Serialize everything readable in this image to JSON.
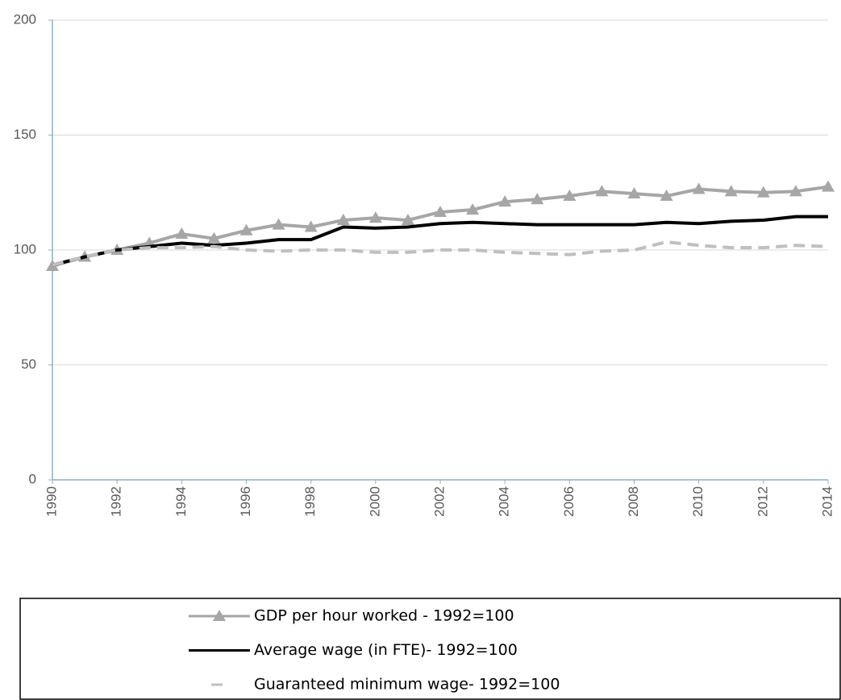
{
  "chart_data": {
    "type": "line",
    "x": [
      1990,
      1991,
      1992,
      1993,
      1994,
      1995,
      1996,
      1997,
      1998,
      1999,
      2000,
      2001,
      2002,
      2003,
      2004,
      2005,
      2006,
      2007,
      2008,
      2009,
      2010,
      2011,
      2012,
      2013,
      2014
    ],
    "xlim": [
      1990,
      2014
    ],
    "xticks": [
      1990,
      1992,
      1994,
      1996,
      1998,
      2000,
      2002,
      2004,
      2006,
      2008,
      2010,
      2012,
      2014
    ],
    "ylim": [
      0,
      200
    ],
    "yticks": [
      0,
      50,
      100,
      150,
      200
    ],
    "grid": true,
    "series": [
      {
        "name": "GDP per hour worked - 1992=100",
        "color": "#a6a6a6",
        "marker": "triangle",
        "dash": "solid",
        "values": [
          93,
          97,
          100,
          103,
          107,
          105,
          108.5,
          111,
          110,
          113,
          114,
          113,
          116.5,
          117.5,
          121,
          122,
          123.5,
          125.5,
          124.5,
          123.5,
          126.5,
          125.5,
          125,
          125.5,
          127.5
        ]
      },
      {
        "name": "Average wage (in FTE)- 1992=100",
        "color": "#000000",
        "marker": "none",
        "dash": "solid",
        "values": [
          93.5,
          97,
          100,
          101.5,
          103,
          102,
          103,
          104.5,
          104.5,
          110,
          109.5,
          110,
          111.5,
          112,
          111.5,
          111,
          111,
          111,
          111,
          112,
          111.5,
          112.5,
          113,
          114.5,
          114.5
        ]
      },
      {
        "name": "Guaranteed minimum wage- 1992=100",
        "color": "#bfbfbf",
        "marker": "none",
        "dash": "dashed",
        "values": [
          93.5,
          97,
          100,
          101,
          101,
          101.5,
          100,
          99.5,
          100,
          100,
          99,
          99,
          100,
          100,
          99,
          98.5,
          98,
          99.5,
          100,
          103.5,
          102,
          101,
          101,
          102,
          101.5
        ]
      }
    ]
  }
}
